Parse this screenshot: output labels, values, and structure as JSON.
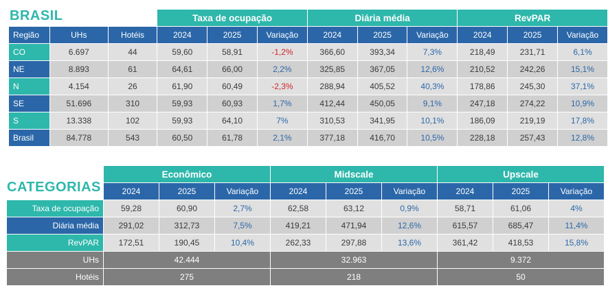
{
  "brasil": {
    "title": "BRASIL",
    "groups": [
      "Taxa de ocupação",
      "Diária média",
      "RevPAR"
    ],
    "headers": [
      "Região",
      "UHs",
      "Hotéis",
      "2024",
      "2025",
      "Variação",
      "2024",
      "2025",
      "Variação",
      "2024",
      "2025",
      "Variação"
    ],
    "rows": [
      {
        "label": "CO",
        "cells": [
          "6.697",
          "44",
          "59,60",
          "58,91",
          "-1,2%",
          "366,60",
          "393,34",
          "7,3%",
          "218,49",
          "231,71",
          "6,1%"
        ]
      },
      {
        "label": "NE",
        "cells": [
          "8.893",
          "61",
          "64,61",
          "66,00",
          "2,2%",
          "325,85",
          "367,05",
          "12,6%",
          "210,52",
          "242,26",
          "15,1%"
        ]
      },
      {
        "label": "N",
        "cells": [
          "4.154",
          "26",
          "61,90",
          "60,49",
          "-2,3%",
          "288,94",
          "405,52",
          "40,3%",
          "178,86",
          "245,30",
          "37,1%"
        ]
      },
      {
        "label": "SE",
        "cells": [
          "51.696",
          "310",
          "59,93",
          "60,93",
          "1,7%",
          "412,44",
          "450,05",
          "9,1%",
          "247,18",
          "274,22",
          "10,9%"
        ]
      },
      {
        "label": "S",
        "cells": [
          "13.338",
          "102",
          "59,93",
          "64,10",
          "7%",
          "310,53",
          "341,95",
          "10,1%",
          "186,09",
          "219,19",
          "17,8%"
        ]
      },
      {
        "label": "Brasil",
        "cells": [
          "84.778",
          "543",
          "60,50",
          "61,78",
          "2,1%",
          "377,18",
          "416,70",
          "10,5%",
          "228,18",
          "257,43",
          "12,8%"
        ]
      }
    ]
  },
  "categorias": {
    "title": "CATEGORIAS",
    "groups": [
      "Econômico",
      "Midscale",
      "Upscale"
    ],
    "headers": [
      "2024",
      "2025",
      "Variação",
      "2024",
      "2025",
      "Variação",
      "2024",
      "2025",
      "Variação"
    ],
    "rows": [
      {
        "label": "Taxa de ocupação",
        "cells": [
          "59,28",
          "60,90",
          "2,7%",
          "62,58",
          "63,12",
          "0,9%",
          "58,71",
          "61,06",
          "4%"
        ]
      },
      {
        "label": "Diária média",
        "cells": [
          "291,02",
          "312,73",
          "7,5%",
          "419,21",
          "471,94",
          "12,6%",
          "615,57",
          "685,47",
          "11,4%"
        ]
      },
      {
        "label": "RevPAR",
        "cells": [
          "172,51",
          "190,45",
          "10,4%",
          "262,33",
          "297,88",
          "13,6%",
          "361,42",
          "418,53",
          "15,8%"
        ]
      }
    ],
    "totals": [
      {
        "label": "UHs",
        "values": [
          "42.444",
          "32.963",
          "9.372"
        ]
      },
      {
        "label": "Hotéis",
        "values": [
          "275",
          "218",
          "50"
        ]
      }
    ]
  },
  "colors": {
    "teal": "#2eb7ab",
    "blue": "#2b67a8",
    "negative": "#d0232a",
    "gray": "#7f7f7f"
  }
}
